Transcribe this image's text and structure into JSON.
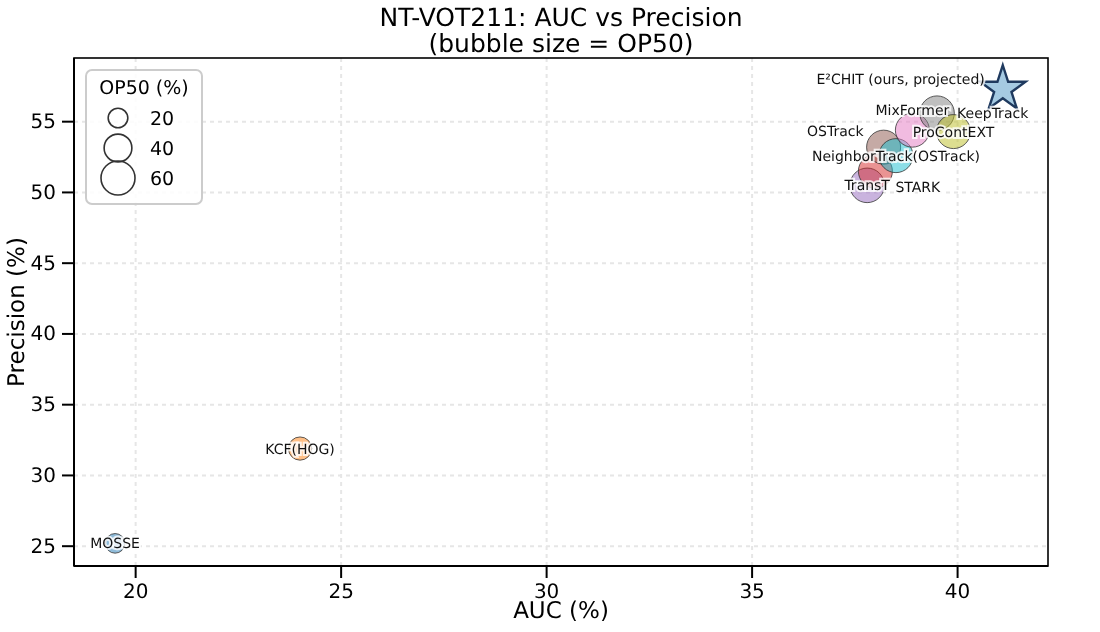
{
  "chart_data": {
    "type": "bubble",
    "title": "NT-VOT211: AUC vs Precision",
    "subtitle": "(bubble size = OP50)",
    "xlabel": "AUC (%)",
    "ylabel": "Precision (%)",
    "legend_title": "OP50 (%)",
    "legend": "top left",
    "size_legend": [
      20,
      40,
      60
    ],
    "grid": true,
    "xlim": [
      18.5,
      42.2
    ],
    "xticks": [
      20,
      25,
      30,
      35,
      40
    ],
    "ylim": [
      23.6,
      59.5
    ],
    "yticks": [
      25,
      30,
      35,
      40,
      45,
      50,
      55
    ],
    "series": [
      {
        "name": "MOSSE",
        "color": "#1f77b4",
        "x": [
          19.5
        ],
        "values": [
          25.2
        ],
        "sizes": [
          20
        ]
      },
      {
        "name": "KCF(HOG)",
        "color": "#ff7f0e",
        "x": [
          24.0
        ],
        "values": [
          31.9
        ],
        "sizes": [
          28
        ]
      },
      {
        "name": "TransT",
        "color": "#9467bd",
        "x": [
          37.8
        ],
        "values": [
          50.5
        ],
        "sizes": [
          62
        ]
      },
      {
        "name": "STARK",
        "color": "#d62728",
        "x": [
          38.0
        ],
        "values": [
          51.5
        ],
        "sizes": [
          60
        ]
      },
      {
        "name": "OSTrack",
        "color": "#8c564b",
        "x": [
          38.2
        ],
        "values": [
          53.2
        ],
        "sizes": [
          60
        ]
      },
      {
        "name": "NeighborTrack(OSTrack)",
        "color": "#17becf",
        "x": [
          38.5
        ],
        "values": [
          52.6
        ],
        "sizes": [
          60
        ]
      },
      {
        "name": "MixFormer",
        "color": "#e377c2",
        "x": [
          38.9
        ],
        "values": [
          54.4
        ],
        "sizes": [
          60
        ]
      },
      {
        "name": "KeepTrack",
        "color": "#7f7f7f",
        "x": [
          39.5
        ],
        "values": [
          55.6
        ],
        "sizes": [
          62
        ]
      },
      {
        "name": "ProContEXT",
        "color": "#bcbd22",
        "x": [
          39.9
        ],
        "values": [
          54.3
        ],
        "sizes": [
          60
        ]
      },
      {
        "name": "E²CHIT (ours, projected)",
        "color": "#1f3a5f",
        "x": [
          41.1
        ],
        "values": [
          57.3
        ],
        "type": "scatter",
        "marker": "star"
      }
    ]
  }
}
